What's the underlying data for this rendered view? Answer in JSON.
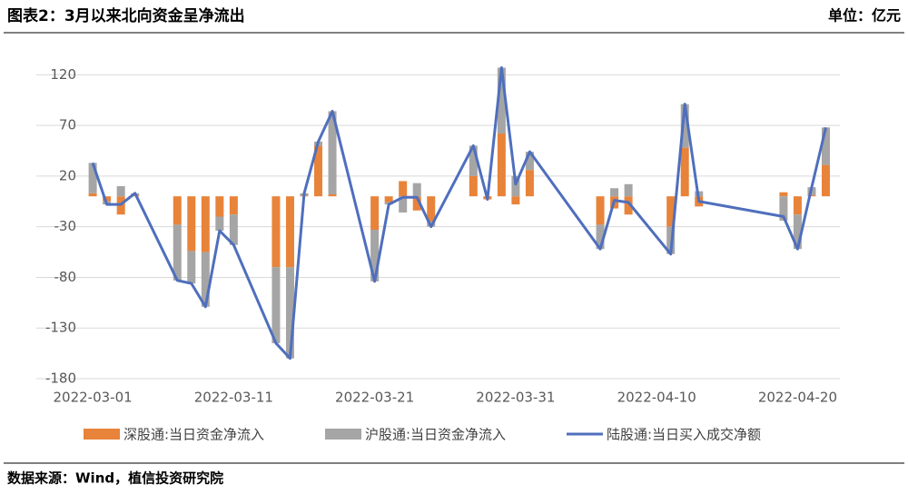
{
  "header": {
    "title": "图表2：3月以来北向资金呈净流出",
    "unit": "单位：亿元"
  },
  "footer": {
    "source": "数据来源：Wind，植信投资研究院"
  },
  "chart_data": {
    "type": "bar",
    "stacked": true,
    "grid": true,
    "legend": "bottom",
    "x": [
      "2022-03-01",
      "2022-03-02",
      "2022-03-03",
      "2022-03-04",
      "2022-03-07",
      "2022-03-08",
      "2022-03-09",
      "2022-03-10",
      "2022-03-11",
      "2022-03-14",
      "2022-03-15",
      "2022-03-16",
      "2022-03-17",
      "2022-03-18",
      "2022-03-21",
      "2022-03-22",
      "2022-03-23",
      "2022-03-24",
      "2022-03-25",
      "2022-03-28",
      "2022-03-29",
      "2022-03-30",
      "2022-03-31",
      "2022-04-01",
      "2022-04-06",
      "2022-04-07",
      "2022-04-08",
      "2022-04-11",
      "2022-04-12",
      "2022-04-13",
      "2022-04-19",
      "2022-04-20",
      "2022-04-21",
      "2022-04-22"
    ],
    "xlim": [
      "2022-02-25",
      "2022-04-23"
    ],
    "xticks": [
      "2022-03-01",
      "2022-03-11",
      "2022-03-21",
      "2022-03-31",
      "2022-04-10",
      "2022-04-20"
    ],
    "ylim": [
      -180,
      140
    ],
    "yticks": [
      120,
      70,
      20,
      -30,
      -80,
      -130,
      -180
    ],
    "series": [
      {
        "name": "深股通:当日资金净流入",
        "type": "bar",
        "color": "#e8833a",
        "values": [
          3,
          -5,
          -18,
          1,
          -28,
          -54,
          -55,
          -20,
          -18,
          -70,
          -70,
          1,
          50,
          2,
          -33,
          -6,
          15,
          -14,
          -25,
          20,
          -3,
          62,
          -8,
          26,
          -28,
          -12,
          -18,
          -30,
          48,
          -10,
          4,
          -18,
          1,
          31
        ]
      },
      {
        "name": "沪股通:当日资金净流入",
        "type": "bar",
        "color": "#a5a5a5",
        "values": [
          30,
          -3,
          10,
          2,
          -55,
          -32,
          -54,
          -14,
          -30,
          -75,
          -90,
          2,
          4,
          82,
          -51,
          -2,
          -16,
          13,
          -5,
          30,
          0,
          65,
          20,
          18,
          -24,
          8,
          12,
          -27,
          43,
          5,
          -24,
          -34,
          8,
          37
        ]
      },
      {
        "name": "陆股通:当日买入成交净额",
        "type": "line",
        "color": "#4f6fbd",
        "values": [
          33,
          -8,
          -8,
          3,
          -83,
          -86,
          -109,
          -34,
          -48,
          -145,
          -160,
          3,
          54,
          84,
          -84,
          -8,
          -1,
          -1,
          -30,
          50,
          -3,
          127,
          12,
          44,
          -52,
          -4,
          -6,
          -57,
          91,
          -5,
          -20,
          -52,
          9,
          68
        ]
      }
    ]
  }
}
